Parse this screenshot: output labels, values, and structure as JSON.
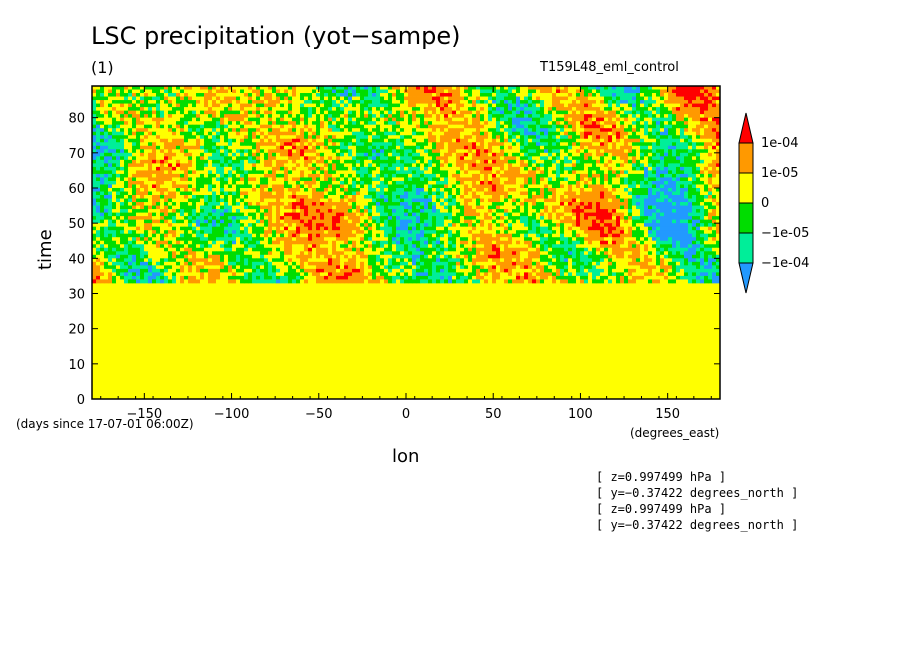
{
  "chart_data": {
    "type": "heatmap",
    "title": "LSC precipitation (yot−sampe)",
    "subtitle": "(1)",
    "run_label": "T159L48_eml_control",
    "xlabel": "lon",
    "ylabel": "time",
    "x_units": "(degrees_east)",
    "y_units": "(days since 17-07-01 06:00Z)",
    "xlim": [
      -180,
      180
    ],
    "ylim": [
      0,
      89
    ],
    "x_ticks": [
      -150,
      -100,
      -50,
      0,
      50,
      100,
      150
    ],
    "x_tick_labels": [
      "−150",
      "−100",
      "−50",
      "0",
      "50",
      "100",
      "150"
    ],
    "y_ticks": [
      0,
      10,
      20,
      30,
      40,
      50,
      60,
      70,
      80
    ],
    "y_tick_labels": [
      "0",
      "10",
      "20",
      "30",
      "40",
      "50",
      "60",
      "70",
      "80"
    ],
    "data_start_time": 33,
    "constant_region_value_class": "0 to 1e-05",
    "colorbar": {
      "levels": [
        "1e-04",
        "1e-05",
        "0",
        "−1e-05",
        "−1e-04"
      ],
      "classes": [
        {
          "range": "> 1e-04",
          "color": "#ff0000"
        },
        {
          "range": "1e-05 to 1e-04",
          "color": "#ff9900"
        },
        {
          "range": "0 to 1e-05",
          "color": "#ffff00"
        },
        {
          "range": "−1e-05 to 0",
          "color": "#00dd00"
        },
        {
          "range": "−1e-04 to −1e-05",
          "color": "#00ee99"
        },
        {
          "range": "< −1e-04",
          "color": "#2299ff"
        }
      ]
    },
    "grid": false
  },
  "info_lines": [
    "[ z=0.997499 hPa ]",
    "[ y=−0.37422 degrees_north ]",
    "[ z=0.997499 hPa ]",
    "[ y=−0.37422 degrees_north ]"
  ]
}
